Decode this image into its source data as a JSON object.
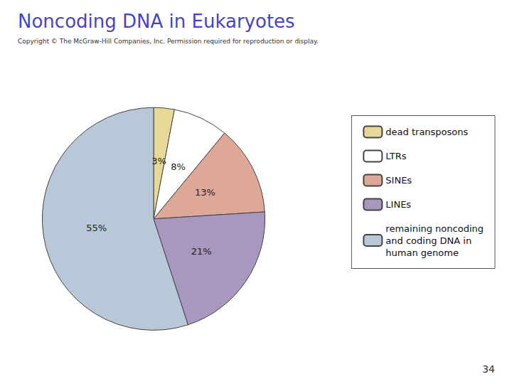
{
  "chart_data": {
    "type": "pie",
    "title": "Noncoding DNA in Eukaryotes",
    "subtitle": "Copyright © The McGraw-Hill Companies, Inc. Permission required for reproduction or display.",
    "annotations": [
      "34"
    ],
    "categories": [
      "dead transposons",
      "LTRs",
      "SINEs",
      "LINEs",
      "remaining noncoding\nand coding DNA in\nhuman genome"
    ],
    "values": [
      3,
      8,
      13,
      21,
      55
    ],
    "value_labels": [
      "3%",
      "8%",
      "13%",
      "21%",
      "55%"
    ],
    "colors": [
      "#e8d898",
      "#ffffff",
      "#dda898",
      "#a898c0",
      "#b8c8d8"
    ],
    "title_color": "#4444cc",
    "data_labels": true,
    "legend": "right"
  }
}
